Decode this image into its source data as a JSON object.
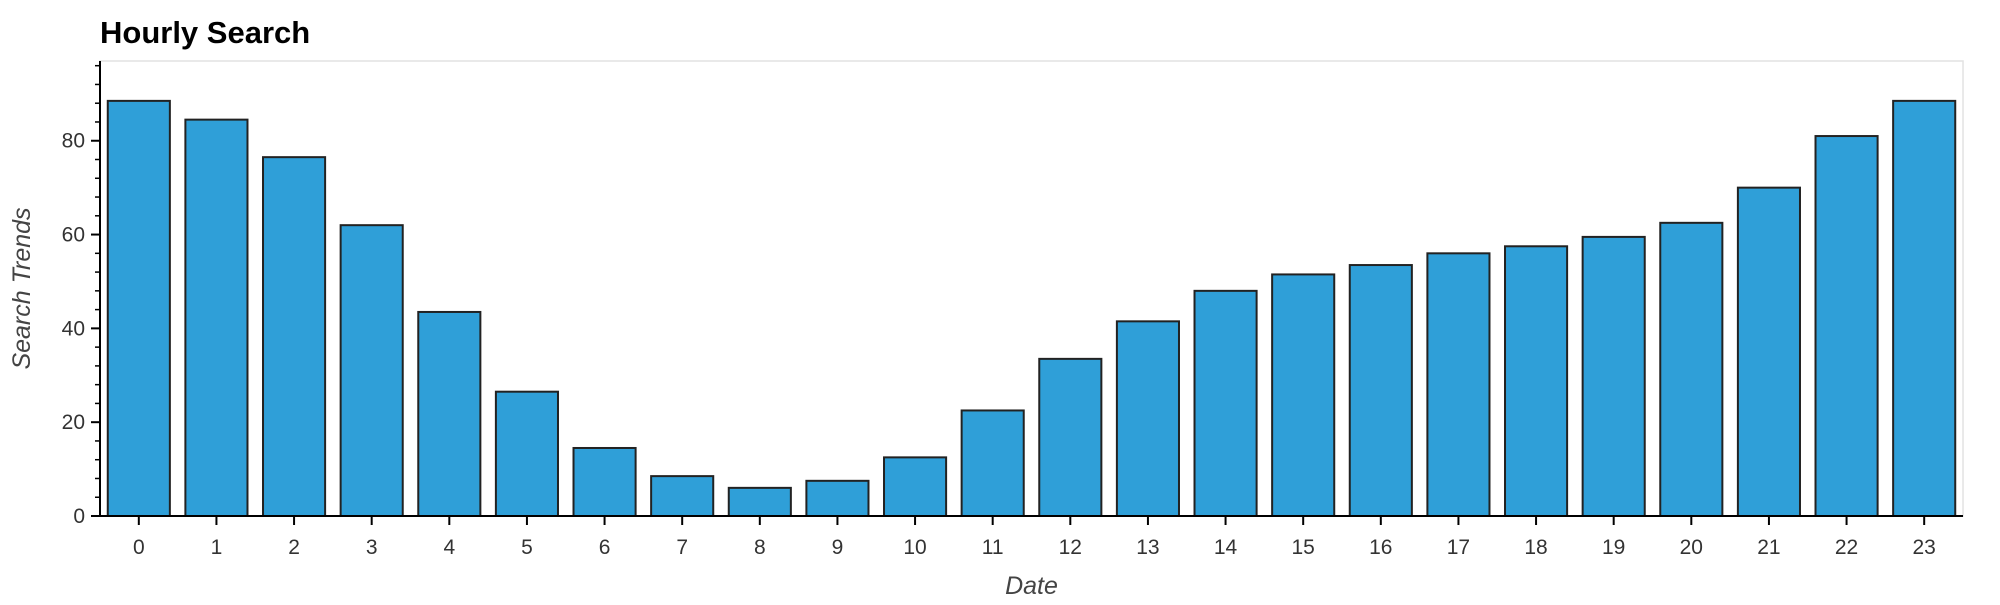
{
  "chart_data": {
    "type": "bar",
    "title": "Hourly Search",
    "xlabel": "Date",
    "ylabel": "Search Trends",
    "categories": [
      "0",
      "1",
      "2",
      "3",
      "4",
      "5",
      "6",
      "7",
      "8",
      "9",
      "10",
      "11",
      "12",
      "13",
      "14",
      "15",
      "16",
      "17",
      "18",
      "19",
      "20",
      "21",
      "22",
      "23"
    ],
    "values": [
      88.5,
      84.5,
      76.5,
      62,
      43.5,
      26.5,
      14.5,
      8.5,
      6,
      7.5,
      12.5,
      22.5,
      33.5,
      41.5,
      48,
      51.5,
      53.5,
      56,
      57.5,
      59.5,
      62.5,
      70,
      81,
      88.5
    ],
    "ylim": [
      0,
      97
    ],
    "yticks": [
      0,
      20,
      40,
      60,
      80
    ],
    "grid": false,
    "colors": {
      "bar_fill": "#2f9fd8",
      "bar_stroke": "#222222",
      "axis": "#000000",
      "frame": "#e2e2e2"
    }
  }
}
